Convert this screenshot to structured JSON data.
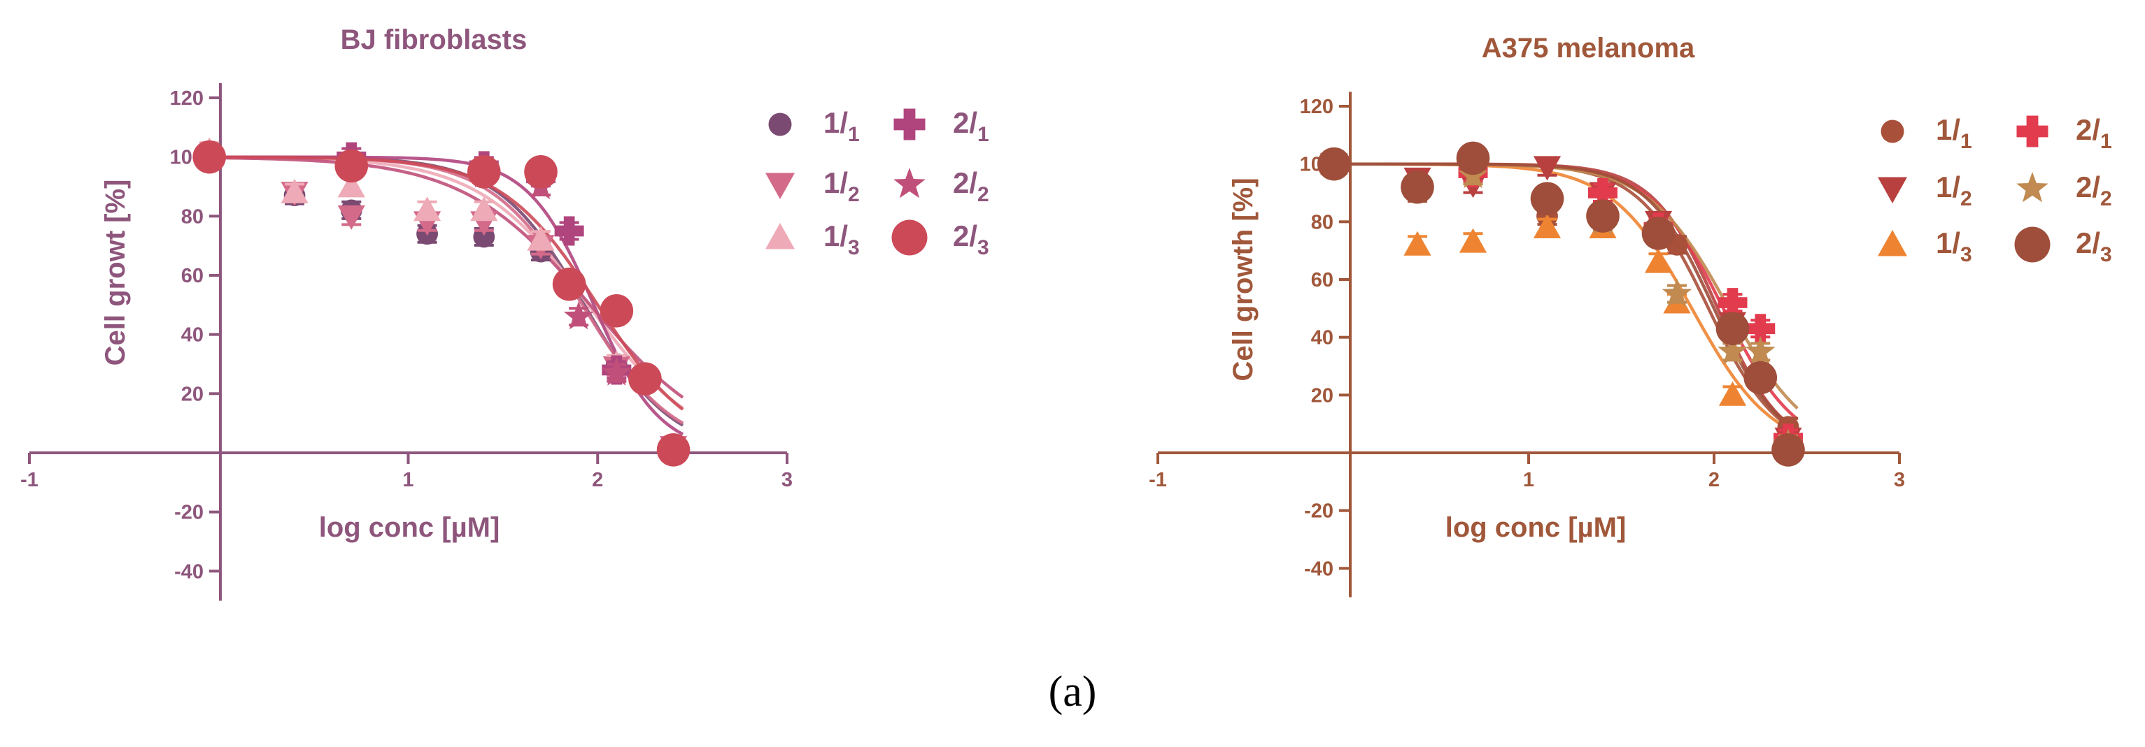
{
  "caption": "(a)",
  "chart_data": [
    {
      "type": "scatter",
      "title": "BJ fibroblasts",
      "xlabel": "log conc [µM]",
      "ylabel": "Cell growt [%]",
      "xlim": [
        -1,
        3
      ],
      "ylim": [
        -50,
        125
      ],
      "xticks": [
        -1,
        1,
        2,
        3
      ],
      "yticks": [
        -40,
        -20,
        20,
        40,
        60,
        80,
        100,
        120
      ],
      "grid": false,
      "legend_position": "right",
      "axis_color": "#8e567c",
      "series": [
        {
          "name": "1/1",
          "main": "1",
          "sub": "1",
          "color": "#7a4a72",
          "marker": "circle",
          "fit": {
            "top": 100,
            "ec50": 1.93,
            "hill": 1.9
          },
          "x": [
            -0.05,
            0.4,
            0.7,
            1.1,
            1.4,
            1.7,
            2.1,
            2.4
          ],
          "y": [
            100,
            87,
            82,
            74,
            73,
            68,
            30,
            2
          ]
        },
        {
          "name": "1/2",
          "main": "1",
          "sub": "2",
          "color": "#d46a8a",
          "marker": "triangle-down",
          "fit": {
            "top": 100,
            "ec50": 1.92,
            "hill": 1.8
          },
          "x": [
            -0.05,
            0.4,
            0.7,
            1.1,
            1.4,
            1.7,
            2.1,
            2.4
          ],
          "y": [
            99,
            88,
            80,
            78,
            78,
            70,
            29,
            2
          ]
        },
        {
          "name": "1/3",
          "main": "1",
          "sub": "3",
          "color": "#eeaab6",
          "marker": "triangle-up",
          "fit": {
            "top": 100,
            "ec50": 1.95,
            "hill": 1.5
          },
          "x": [
            -0.05,
            0.4,
            0.7,
            1.1,
            1.4,
            1.7,
            2.1,
            2.4
          ],
          "y": [
            102,
            88,
            90,
            82,
            82,
            72,
            30,
            2
          ]
        },
        {
          "name": "2/1",
          "main": "2",
          "sub": "1",
          "color": "#b0457e",
          "marker": "plus",
          "fit": {
            "top": 100,
            "ec50": 1.98,
            "hill": 2.5
          },
          "x": [
            -0.05,
            0.7,
            1.4,
            1.7,
            1.85,
            2.1,
            2.4
          ],
          "y": [
            100,
            100,
            97,
            93,
            75,
            28,
            1
          ]
        },
        {
          "name": "2/2",
          "main": "2",
          "sub": "2",
          "color": "#c0507a",
          "marker": "star",
          "fit": {
            "top": 100,
            "ec50": 1.96,
            "hill": 1.3
          },
          "x": [
            -0.05,
            0.7,
            1.4,
            1.7,
            1.9,
            2.1,
            2.4
          ],
          "y": [
            100,
            97,
            94,
            90,
            46,
            27,
            1
          ]
        },
        {
          "name": "2/3",
          "main": "2",
          "sub": "3",
          "color": "#cc4a58",
          "marker": "circle-large",
          "fit": {
            "top": 100,
            "ec50": 2.0,
            "hill": 1.7
          },
          "x": [
            -0.05,
            0.7,
            1.4,
            1.7,
            1.85,
            2.1,
            2.25,
            2.4
          ],
          "y": [
            100,
            97,
            95,
            95,
            57,
            48,
            25,
            1
          ]
        }
      ]
    },
    {
      "type": "scatter",
      "title": "A375 melanoma",
      "xlabel": "log conc [µM]",
      "ylabel": "Cell growth [%]",
      "xlim": [
        -1,
        3
      ],
      "ylim": [
        -50,
        125
      ],
      "xticks": [
        -1,
        1,
        2,
        3
      ],
      "yticks": [
        -40,
        -20,
        20,
        40,
        60,
        80,
        100,
        120
      ],
      "grid": false,
      "legend_position": "right",
      "axis_color": "#a0573a",
      "series": [
        {
          "name": "1/1",
          "main": "1",
          "sub": "1",
          "color": "#a8503a",
          "marker": "circle",
          "fit": {
            "top": 100,
            "ec50": 1.97,
            "hill": 2.3
          },
          "x": [
            -0.05,
            0.4,
            0.7,
            1.1,
            1.4,
            1.7,
            1.8,
            2.1,
            2.4
          ],
          "y": [
            99,
            90,
            97,
            82,
            82,
            79,
            72,
            43,
            9
          ]
        },
        {
          "name": "1/2",
          "main": "1",
          "sub": "2",
          "color": "#b8403f",
          "marker": "triangle-down",
          "fit": {
            "top": 100,
            "ec50": 2.02,
            "hill": 2.5
          },
          "x": [
            -0.05,
            0.4,
            0.7,
            1.1,
            1.4,
            1.7,
            2.1,
            2.4
          ],
          "y": [
            100,
            95,
            93,
            99,
            90,
            80,
            45,
            5
          ]
        },
        {
          "name": "1/3",
          "main": "1",
          "sub": "3",
          "color": "#ee8432",
          "marker": "triangle-up",
          "fit": {
            "top": 100,
            "ec50": 1.88,
            "hill": 2.0
          },
          "x": [
            -0.05,
            0.4,
            0.7,
            1.1,
            1.4,
            1.7,
            1.8,
            2.1,
            2.4
          ],
          "y": [
            100,
            72,
            73,
            78,
            78,
            66,
            52,
            20,
            3
          ]
        },
        {
          "name": "2/1",
          "main": "2",
          "sub": "1",
          "color": "#e23b4e",
          "marker": "plus",
          "fit": {
            "top": 100,
            "ec50": 2.05,
            "hill": 2.2
          },
          "x": [
            -0.05,
            0.7,
            1.4,
            1.7,
            2.1,
            2.25,
            2.4
          ],
          "y": [
            100,
            97,
            90,
            78,
            52,
            43,
            5
          ]
        },
        {
          "name": "2/2",
          "main": "2",
          "sub": "2",
          "color": "#c08a50",
          "marker": "star",
          "fit": {
            "top": 100,
            "ec50": 2.08,
            "hill": 2.0
          },
          "x": [
            -0.05,
            0.7,
            1.4,
            1.8,
            2.1,
            2.25,
            2.4
          ],
          "y": [
            100,
            96,
            80,
            55,
            35,
            35,
            3
          ]
        },
        {
          "name": "2/3",
          "main": "2",
          "sub": "3",
          "color": "#9e4e3a",
          "marker": "circle-large",
          "fit": {
            "top": 100,
            "ec50": 2.0,
            "hill": 2.4
          },
          "x": [
            -0.05,
            0.4,
            0.7,
            1.1,
            1.4,
            1.7,
            2.1,
            2.25,
            2.4
          ],
          "y": [
            100,
            92,
            102,
            88,
            82,
            76,
            43,
            26,
            1
          ]
        }
      ]
    }
  ]
}
